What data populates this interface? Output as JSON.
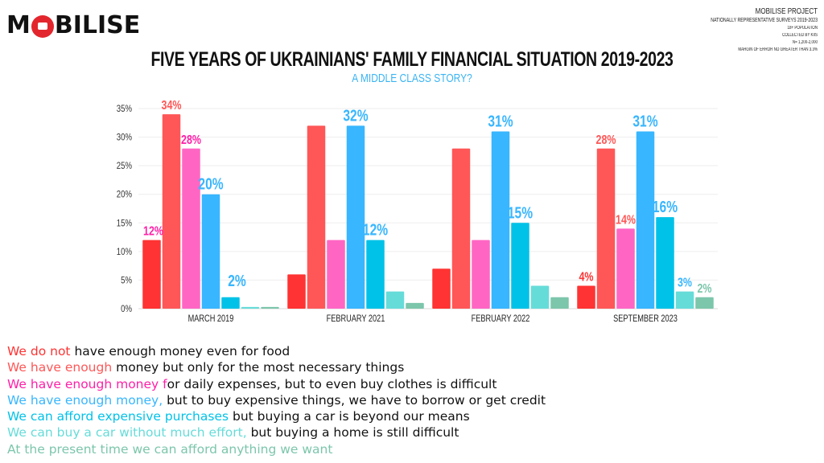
{
  "logo": {
    "text_left": "M",
    "text_right": "BILISE"
  },
  "meta": {
    "project": "MOBILISE PROJECT",
    "lines": [
      "NATIONALLY REPRESENTATIVE SURVEYS 2019-2023",
      "18+ POPULATION",
      "COLLECTED BY KIIS",
      "N= 1,200-2,000",
      "MARGIN OF ERROR NO GREATER THAN 3.3%"
    ]
  },
  "colors": {
    "series": [
      "#ff3333",
      "#ff5757",
      "#ff66c4",
      "#38b6ff",
      "#00c2e8",
      "#66dcd9",
      "#7cc6ab"
    ],
    "subtitle": "#38b6ff"
  },
  "chart_data": {
    "type": "bar",
    "title": "FIVE YEARS OF UKRAINIANS' FAMILY FINANCIAL SITUATION 2019-2023",
    "subtitle": "A MIDDLE CLASS STORY?",
    "xlabel": "",
    "ylabel": "",
    "ylim": [
      0,
      35
    ],
    "yticks": [
      "0%",
      "5%",
      "10%",
      "15%",
      "20%",
      "25%",
      "30%",
      "35%"
    ],
    "ytick_values": [
      0,
      5,
      10,
      15,
      20,
      25,
      30,
      35
    ],
    "grid": true,
    "legend_placement": "bottom",
    "categories": [
      "MARCH 2019",
      "FEBRUARY 2021",
      "FEBRUARY 2022",
      "SEPTEMBER 2023"
    ],
    "series": [
      {
        "name": "We do not have enough money even for food",
        "values": [
          12,
          6,
          7,
          4
        ]
      },
      {
        "name": "We have enough money but only for the most necessary things",
        "values": [
          34,
          32,
          28,
          28
        ]
      },
      {
        "name": "We have enough money for daily expenses, but to even buy clothes is difficult",
        "values": [
          28,
          12,
          12,
          14
        ]
      },
      {
        "name": "We have enough money, but to buy expensive things, we have to borrow or get credit",
        "values": [
          20,
          32,
          31,
          31
        ]
      },
      {
        "name": "We can afford expensive purchases but buying a car is beyond our means",
        "values": [
          2,
          12,
          15,
          16
        ]
      },
      {
        "name": "We can buy a car without much effort, but buying a home is still difficult",
        "values": [
          0.3,
          3,
          4,
          3
        ]
      },
      {
        "name": "At the present time we can afford anything we want",
        "values": [
          0.3,
          1,
          2,
          2
        ]
      }
    ],
    "data_labels": [
      {
        "category": 0,
        "series": 0,
        "text": "12%",
        "color": "#ff1fa8"
      },
      {
        "category": 0,
        "series": 1,
        "text": "34%",
        "color": "#ff5757"
      },
      {
        "category": 0,
        "series": 2,
        "text": "28%",
        "color": "#ff1fa8"
      },
      {
        "category": 0,
        "series": 3,
        "text": "20%",
        "color": "#38b6ff"
      },
      {
        "category": 0,
        "series": 4,
        "text": "2%",
        "color": "#38b6ff"
      },
      {
        "category": 1,
        "series": 3,
        "text": "32%",
        "color": "#38b6ff"
      },
      {
        "category": 1,
        "series": 4,
        "text": "12%",
        "color": "#38b6ff"
      },
      {
        "category": 2,
        "series": 3,
        "text": "31%",
        "color": "#38b6ff"
      },
      {
        "category": 2,
        "series": 4,
        "text": "15%",
        "color": "#38b6ff"
      },
      {
        "category": 3,
        "series": 0,
        "text": "4%",
        "color": "#ff3333"
      },
      {
        "category": 3,
        "series": 1,
        "text": "28%",
        "color": "#ff5757"
      },
      {
        "category": 3,
        "series": 2,
        "text": "14%",
        "color": "#ff5757"
      },
      {
        "category": 3,
        "series": 3,
        "text": "31%",
        "color": "#38b6ff"
      },
      {
        "category": 3,
        "series": 4,
        "text": "16%",
        "color": "#38b6ff"
      },
      {
        "category": 3,
        "series": 5,
        "text": "3%",
        "color": "#38b6ff"
      },
      {
        "category": 3,
        "series": 6,
        "text": "2%",
        "color": "#7cc6ab"
      }
    ]
  },
  "legend": [
    {
      "highlight": "We do not",
      "rest": " have enough money even for food",
      "color": "#ff3333"
    },
    {
      "highlight": "We have enough",
      "rest": " money but only for the most necessary things",
      "color": "#ff5757"
    },
    {
      "highlight": "We have enough money f",
      "rest": "or daily expenses, but to even buy clothes is difficult",
      "color": "#ff1fa8"
    },
    {
      "highlight": "We have enough money,",
      "rest": " but to buy expensive things, we have to borrow or get credit",
      "color": "#38b6ff"
    },
    {
      "highlight": "We can afford expensive purchases",
      "rest": " but buying a car is beyond our means",
      "color": "#00c2e8"
    },
    {
      "highlight": "We can buy a car without much effort,",
      "rest": " but buying a home is still difficult",
      "color": "#66dcd9"
    },
    {
      "highlight": "At the present time we can afford anything we want",
      "rest": "",
      "color": "#7cc6ab"
    }
  ]
}
